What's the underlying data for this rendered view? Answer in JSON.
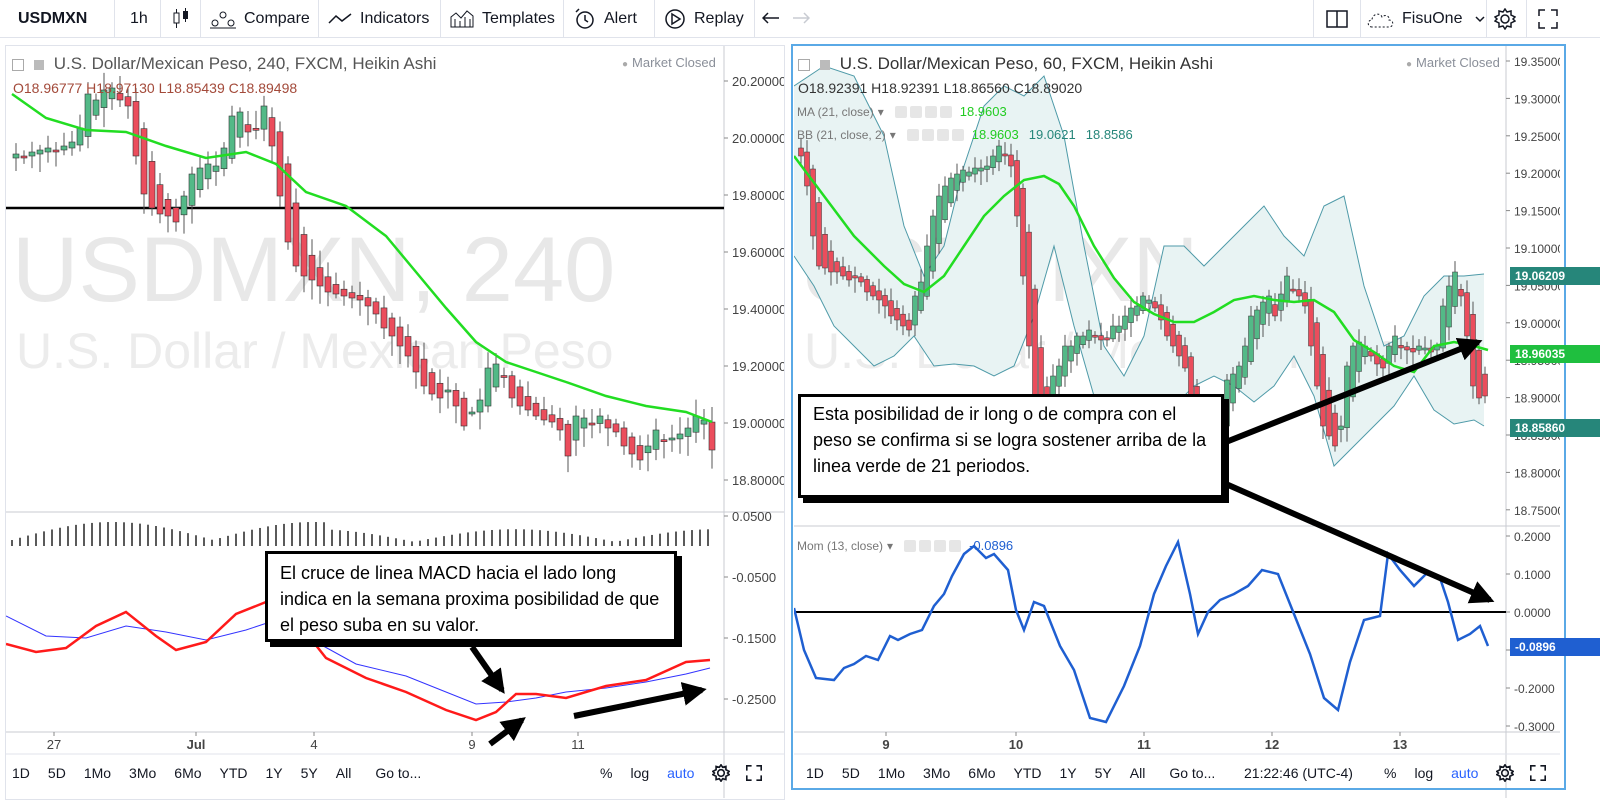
{
  "toolbar": {
    "symbol": "USDMXN",
    "interval": "1h",
    "compare": "Compare",
    "indicators": "Indicators",
    "templates": "Templates",
    "alert": "Alert",
    "replay": "Replay",
    "account": "FisuOne"
  },
  "left_pane": {
    "title": "U.S. Dollar/Mexican Peso, 240, FXCM, Heikin Ashi",
    "market_status": "Market Closed",
    "ohlc": "O18.96777  H18.97130  L18.85439  C18.89498",
    "watermark_big": "USDMXN, 240",
    "watermark_small": "U.S. Dollar / Mexican Peso",
    "price_ticks": [
      "20.20000",
      "20.00000",
      "19.80000",
      "19.60000",
      "19.40000",
      "19.20000",
      "19.00000",
      "18.80000"
    ],
    "macd_ticks": [
      "0.0500",
      "-0.0500",
      "-0.1500",
      "-0.2500"
    ],
    "x_ticks": [
      "27",
      "Jul",
      "4",
      "9",
      "11"
    ]
  },
  "right_pane": {
    "title": "U.S. Dollar/Mexican Peso, 60, FXCM, Heikin Ashi",
    "market_status": "Market Closed",
    "ohlc": "O18.92391  H18.92391  L18.86560  C18.89020",
    "ma_legend": "MA (21, close)",
    "ma_value": "18.9603",
    "bb_legend": "BB (21, close, 2)",
    "bb_values": [
      "18.9603",
      "19.0621",
      "18.8586"
    ],
    "mom_legend": "Mom (13, close)",
    "mom_value": "-0.0896",
    "watermark_big": "USDMXN, 60",
    "watermark_small": "U.S. Dollar / Mexican Peso",
    "price_ticks": [
      "19.35000",
      "19.30000",
      "19.25000",
      "19.20000",
      "19.15000",
      "19.10000",
      "19.05000",
      "19.00000",
      "18.95000",
      "18.90000",
      "18.85000",
      "18.80000",
      "18.75000"
    ],
    "last_tags": [
      {
        "label": "19.06209",
        "color": "#26867a"
      },
      {
        "label": "18.96035",
        "color": "#1fbf3f"
      },
      {
        "label": "18.85860",
        "color": "#26867a"
      }
    ],
    "mom_ticks": [
      "0.2000",
      "0.1000",
      "0.0000",
      "-0.1000",
      "-0.2000",
      "-0.3000"
    ],
    "mom_last": "-0.0896",
    "x_ticks": [
      "9",
      "10",
      "11",
      "12",
      "13"
    ],
    "clock": "21:22:46 (UTC-4)"
  },
  "bottom_bar": {
    "ranges": [
      "1D",
      "5D",
      "1Mo",
      "3Mo",
      "6Mo",
      "YTD",
      "1Y",
      "5Y",
      "All"
    ],
    "goto": "Go to...",
    "percent": "%",
    "log": "log",
    "auto": "auto"
  },
  "callouts": {
    "left": "El cruce de linea MACD hacia el lado long indica en la semana proxima posibilidad de que el peso suba en su valor.",
    "right": "Esta posibilidad de ir long o de compra con el peso se confirma si se logra sostener arriba de la linea verde de 21 periodos."
  },
  "colors": {
    "up": "#53b987",
    "down": "#eb4d5c",
    "ma": "#22dd22",
    "macd": "#ff1a1a",
    "signal": "#3333ff",
    "mom": "#1f5fd1",
    "bb": "#4e9aa8",
    "accent": "#2962ff"
  }
}
